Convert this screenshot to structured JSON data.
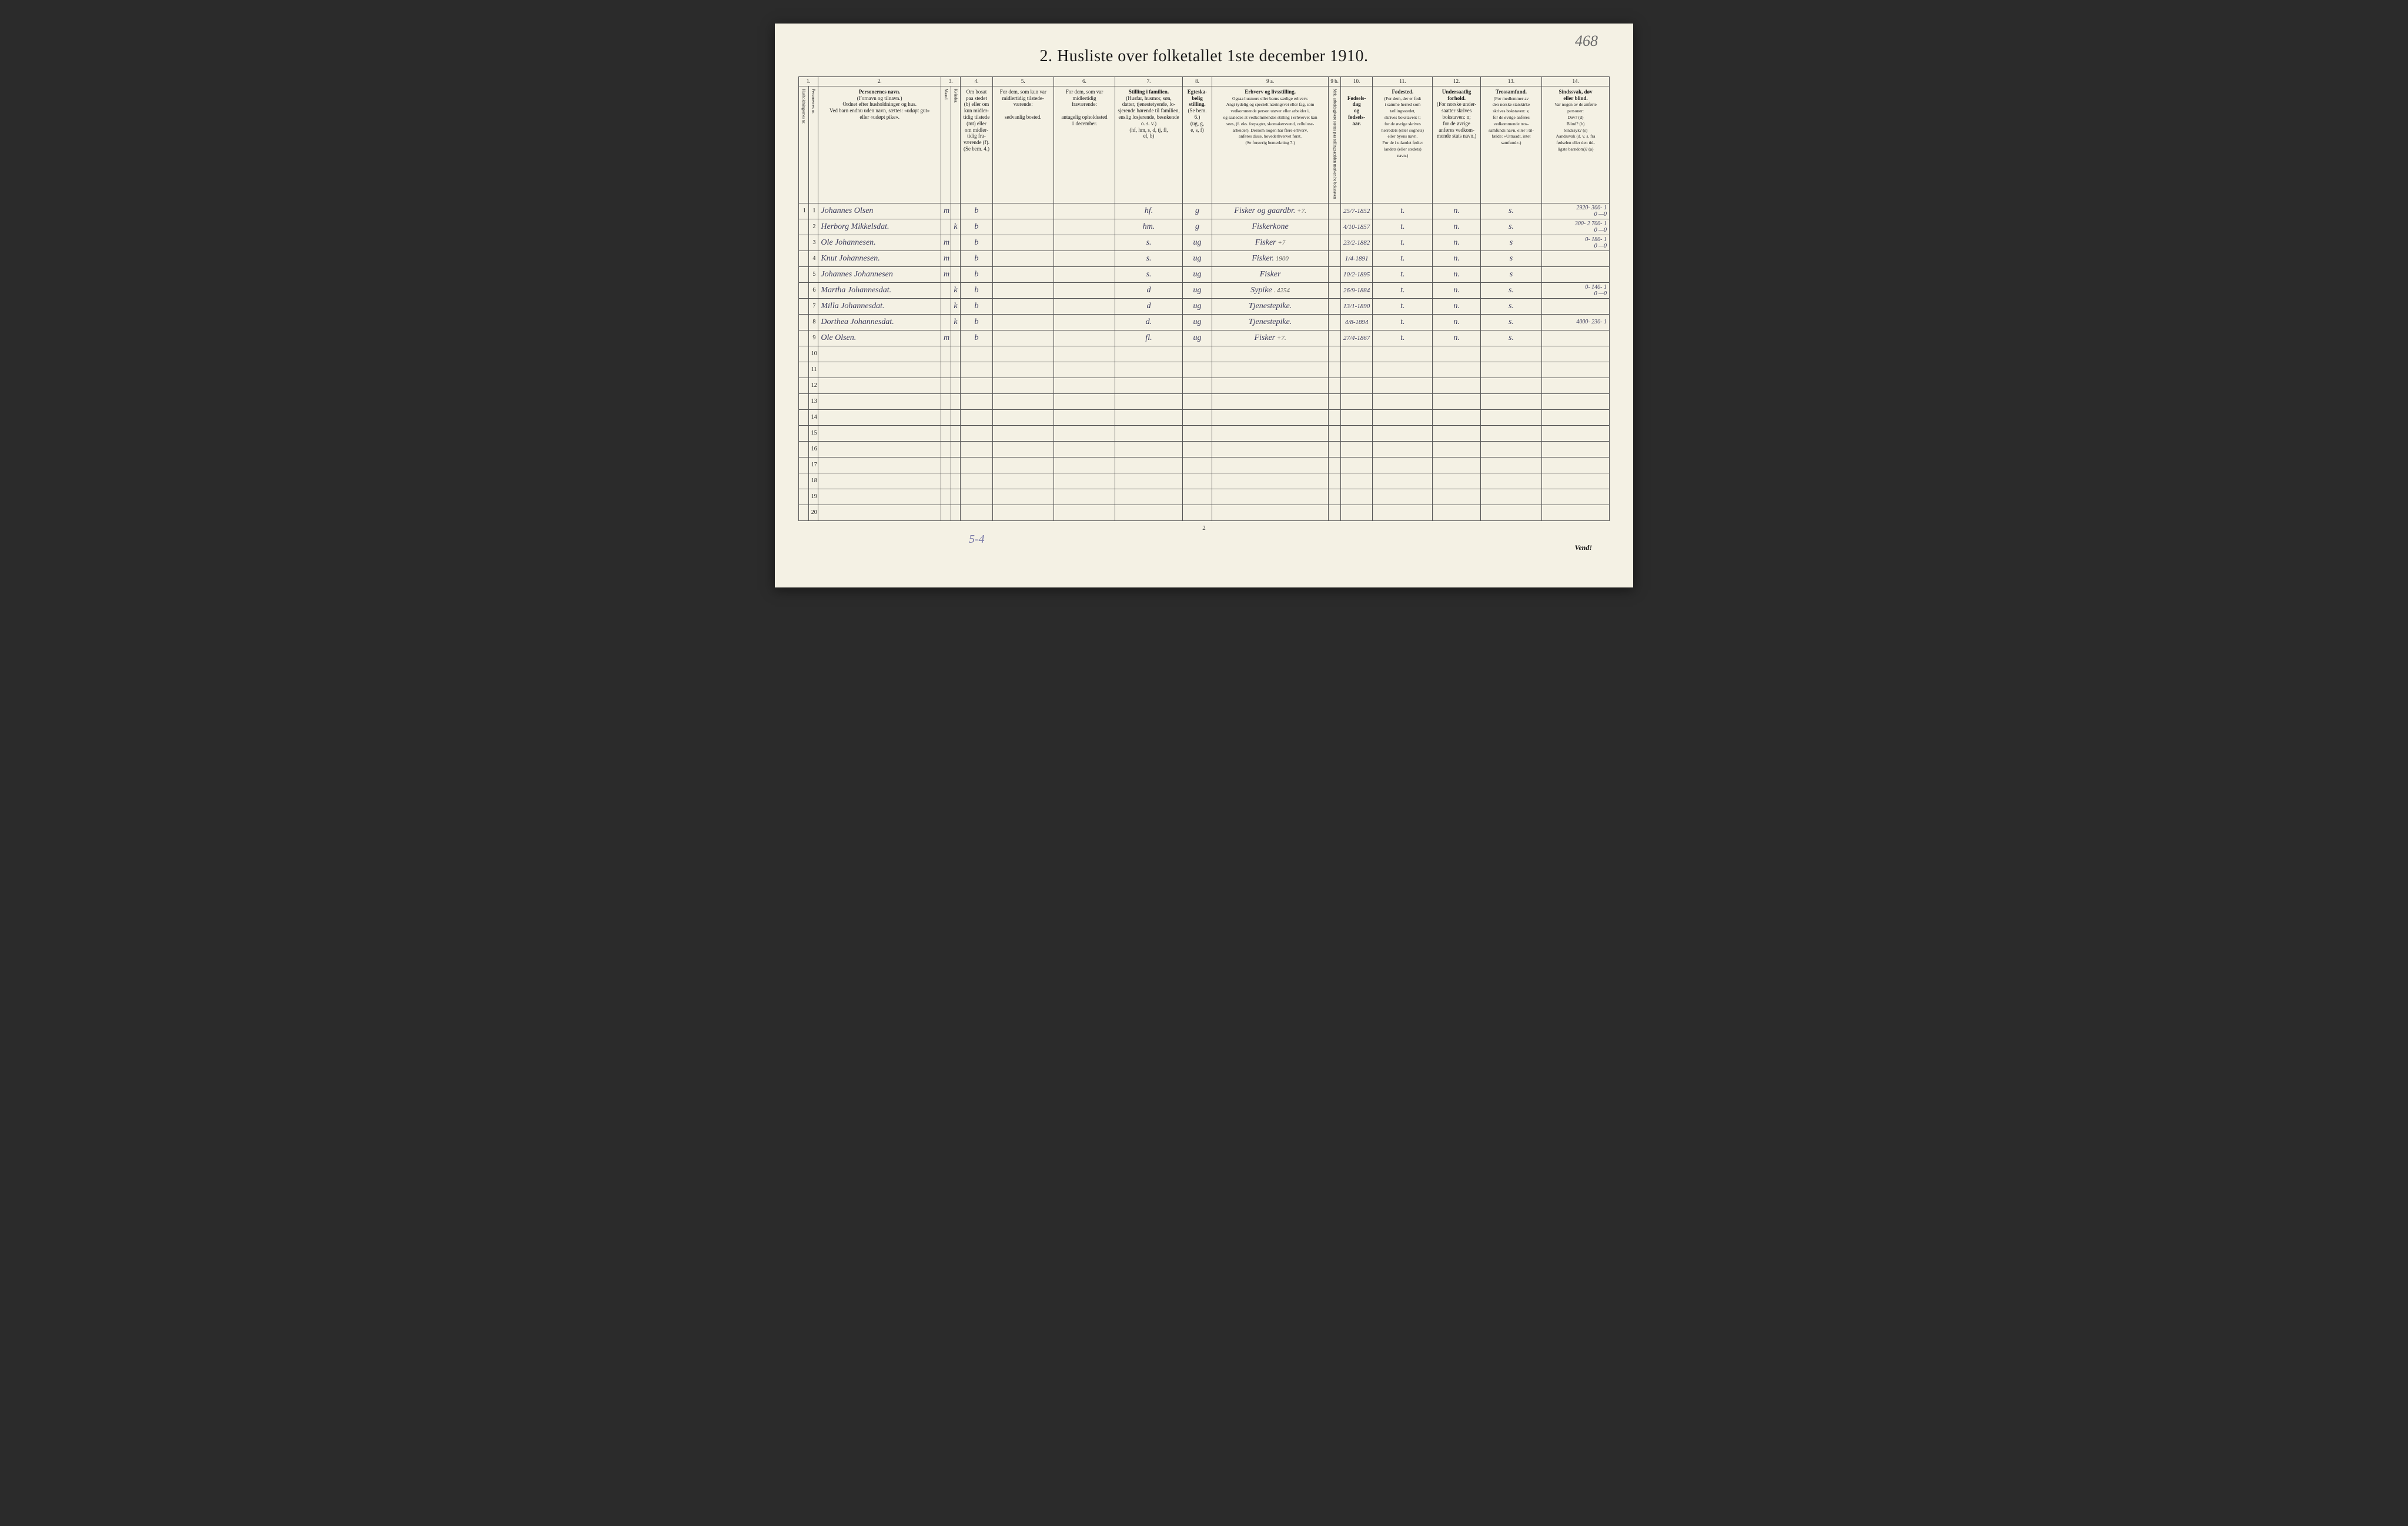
{
  "page": {
    "topRightAnnot": "468",
    "title": "2.  Husliste over folketallet 1ste december 1910.",
    "pageNumber": "2",
    "vend": "Vend!",
    "bottomAnnot": "5-4"
  },
  "columns": {
    "numbers": [
      "1.",
      "2.",
      "3.",
      "4.",
      "5.",
      "6.",
      "7.",
      "8.",
      "9 a.",
      "9 b.",
      "10.",
      "11.",
      "12.",
      "13.",
      "14."
    ],
    "c1a": "Husholdningernes nr.",
    "c1b": "Personernes nr.",
    "c2_title": "Personernes navn.",
    "c2_sub": "(Fornavn og tilnavn.)\nOrdnet efter husholdninger og hus.\nVed barn endnu uden navn, sættes: «udøpt gut»\neller «udøpt pike».",
    "c3_title": "Kjøn.",
    "c3_m": "Mænd.",
    "c3_k": "Kvinder.",
    "c3_foot": "m.  k.",
    "c4_title": "Om bosat\npaa stedet\n(b) eller om\nkun midler-\ntidig tilstede\n(mt) eller\nom midler-\ntidig fra-\nværende (f).\n(Se bem. 4.)",
    "c5_title": "For dem, som kun var\nmidlertidig tilstede-\nværende:",
    "c5_sub": "sedvanlig bosted.",
    "c6_title": "For dem, som var\nmidlertidig\nfraværende:",
    "c6_sub": "antagelig opholdssted\n1 december.",
    "c7_title": "Stilling i familien.",
    "c7_sub": "(Husfar, husmor, søn,\ndatter, tjenestetyende, lo-\nsjerende hørende til familien,\nenslig losjerende, besøkende\no. s. v.)\n(hf, hm, s, d, tj, fl,\nel, b)",
    "c8_title": "Egteska-\nbelig\nstilling.",
    "c8_sub": "(Se bem. 6.)\n(ug, g,\ne, s, f)",
    "c9a_title": "Erhverv og livsstilling.",
    "c9a_sub": "Ogsaa husmors eller barns særlige erhverv.\nAngi tydelig og specielt næringsvei eller fag, som\nvedkommende person utøver eller arbeider i,\nog saaledes at vedkommendes stilling i erhvervet kan\nsees, (f. eks. forpagter, skomakersvend, cellulose-\narbeider). Dersom nogen har flere erhverv,\nanføres disse, hovederhvervet først.\n(Se forøvrig bemerkning 7.)",
    "c9b_title": "Mrk. arbeidsgivere sættes\npaa tellingzacdden merken\nhe bokstaven ",
    "c10_title": "Fødsels-\ndag\nog\nfødsels-\naar.",
    "c11_title": "Fødested.",
    "c11_sub": "(For dem, der er født\ni samme herred som\ntællingsstedet,\nskrives bokstaven: t;\nfor de øvrige skrives\nherredets (eller sognets)\neller byens navn.\nFor de i utlandet fødte:\nlandets (eller stedets)\nnavn.)",
    "c12_title": "Undersaatlig\nforhold.",
    "c12_sub": "(For norske under-\nsaatter skrives\nbokstaven: n;\nfor de øvrige\nanføres vedkom-\nmende stats navn.)",
    "c13_title": "Trossamfund.",
    "c13_sub": "(For medlemmer av\nden norske statskirke\nskrives bokstaven: s;\nfor de øvrige anføres\nvedkommende tros-\nsamfunds navn, eller i til-\nfælde: «Uttraadt, intet\nsamfund».)",
    "c14_title": "Sindssvak, døv\neller blind.",
    "c14_sub": "Var nogen av de anførte\npersoner:\nDøv?        (d)\nBlind?       (b)\nSindssyk?  (s)\nAandssvak (d. v. s. fra\nfødselen eller den tid-\nligste barndom)?   (a)"
  },
  "rows": [
    {
      "hn": "1",
      "pn": "1",
      "name": "Johannes Olsen",
      "sex": "m",
      "res": "b",
      "fam": "hf.",
      "mar": "g",
      "occ": "Fisker og gaardbr.",
      "occnote": "+7.",
      "dob": "25/7-1852",
      "bp": "t.",
      "nat": "n.",
      "rel": "s.",
      "col14": "2920- 300- 1\n0 —0"
    },
    {
      "hn": "",
      "pn": "2",
      "name": "Herborg Mikkelsdat.",
      "sex": "k",
      "res": "b",
      "fam": "hm.",
      "mar": "g",
      "occ": "Fiskerkone",
      "occnote": "",
      "dob": "4/10-1857",
      "bp": "t.",
      "nat": "n.",
      "rel": "s.",
      "col14": "300- 2 700- 1\n0 —0"
    },
    {
      "hn": "",
      "pn": "3",
      "name": "Ole Johannesen.",
      "sex": "m",
      "res": "b",
      "fam": "s.",
      "mar": "ug",
      "occ": "Fisker",
      "occnote": "+7",
      "dob": "23/2-1882",
      "bp": "t.",
      "nat": "n.",
      "rel": "s",
      "col14": "0- 180- 1\n0 —0"
    },
    {
      "hn": "",
      "pn": "4",
      "name": "Knut Johannesen.",
      "sex": "m",
      "res": "b",
      "fam": "s.",
      "mar": "ug",
      "occ": "Fisker.",
      "occnote": "1900",
      "dob": "1/4-1891",
      "bp": "t.",
      "nat": "n.",
      "rel": "s",
      "col14": ""
    },
    {
      "hn": "",
      "pn": "5",
      "name": "Johannes Johannesen",
      "sex": "m",
      "res": "b",
      "fam": "s.",
      "mar": "ug",
      "occ": "Fisker",
      "occnote": "",
      "dob": "10/2-1895",
      "bp": "t.",
      "nat": "n.",
      "rel": "s",
      "col14": ""
    },
    {
      "hn": "",
      "pn": "6",
      "name": "Martha Johannesdat.",
      "sex": "k",
      "res": "b",
      "fam": "d",
      "mar": "ug",
      "occ": "Sypike",
      "occnote": ". 4254",
      "dob": "26/9-1884",
      "bp": "t.",
      "nat": "n.",
      "rel": "s.",
      "col14": "0- 140- 1\n0 —0"
    },
    {
      "hn": "",
      "pn": "7",
      "name": "Milla Johannesdat.",
      "sex": "k",
      "res": "b",
      "fam": "d",
      "mar": "ug",
      "occ": "Tjenestepike.",
      "occnote": "",
      "dob": "13/1-1890",
      "bp": "t.",
      "nat": "n.",
      "rel": "s.",
      "col14": ""
    },
    {
      "hn": "",
      "pn": "8",
      "name": "Dorthea Johannesdat.",
      "sex": "k",
      "res": "b",
      "fam": "d.",
      "mar": "ug",
      "occ": "Tjenestepike.",
      "occnote": "",
      "dob": "4/8-1894",
      "bp": "t.",
      "nat": "n.",
      "rel": "s.",
      "col14": "4000- 230- 1"
    },
    {
      "hn": "",
      "pn": "9",
      "name": "Ole Olsen.",
      "sex": "m",
      "res": "b",
      "fam": "fl.",
      "mar": "ug",
      "occ": "Fisker",
      "occnote": "+7.",
      "dob": "27/4-1867",
      "bp": "t.",
      "nat": "n.",
      "rel": "s.",
      "col14": ""
    },
    {
      "hn": "",
      "pn": "10",
      "name": "",
      "sex": "",
      "res": "",
      "fam": "",
      "mar": "",
      "occ": "",
      "occnote": "",
      "dob": "",
      "bp": "",
      "nat": "",
      "rel": "",
      "col14": ""
    },
    {
      "hn": "",
      "pn": "11",
      "name": "",
      "sex": "",
      "res": "",
      "fam": "",
      "mar": "",
      "occ": "",
      "occnote": "",
      "dob": "",
      "bp": "",
      "nat": "",
      "rel": "",
      "col14": ""
    },
    {
      "hn": "",
      "pn": "12",
      "name": "",
      "sex": "",
      "res": "",
      "fam": "",
      "mar": "",
      "occ": "",
      "occnote": "",
      "dob": "",
      "bp": "",
      "nat": "",
      "rel": "",
      "col14": ""
    },
    {
      "hn": "",
      "pn": "13",
      "name": "",
      "sex": "",
      "res": "",
      "fam": "",
      "mar": "",
      "occ": "",
      "occnote": "",
      "dob": "",
      "bp": "",
      "nat": "",
      "rel": "",
      "col14": ""
    },
    {
      "hn": "",
      "pn": "14",
      "name": "",
      "sex": "",
      "res": "",
      "fam": "",
      "mar": "",
      "occ": "",
      "occnote": "",
      "dob": "",
      "bp": "",
      "nat": "",
      "rel": "",
      "col14": ""
    },
    {
      "hn": "",
      "pn": "15",
      "name": "",
      "sex": "",
      "res": "",
      "fam": "",
      "mar": "",
      "occ": "",
      "occnote": "",
      "dob": "",
      "bp": "",
      "nat": "",
      "rel": "",
      "col14": ""
    },
    {
      "hn": "",
      "pn": "16",
      "name": "",
      "sex": "",
      "res": "",
      "fam": "",
      "mar": "",
      "occ": "",
      "occnote": "",
      "dob": "",
      "bp": "",
      "nat": "",
      "rel": "",
      "col14": ""
    },
    {
      "hn": "",
      "pn": "17",
      "name": "",
      "sex": "",
      "res": "",
      "fam": "",
      "mar": "",
      "occ": "",
      "occnote": "",
      "dob": "",
      "bp": "",
      "nat": "",
      "rel": "",
      "col14": ""
    },
    {
      "hn": "",
      "pn": "18",
      "name": "",
      "sex": "",
      "res": "",
      "fam": "",
      "mar": "",
      "occ": "",
      "occnote": "",
      "dob": "",
      "bp": "",
      "nat": "",
      "rel": "",
      "col14": ""
    },
    {
      "hn": "",
      "pn": "19",
      "name": "",
      "sex": "",
      "res": "",
      "fam": "",
      "mar": "",
      "occ": "",
      "occnote": "",
      "dob": "",
      "bp": "",
      "nat": "",
      "rel": "",
      "col14": ""
    },
    {
      "hn": "",
      "pn": "20",
      "name": "",
      "sex": "",
      "res": "",
      "fam": "",
      "mar": "",
      "occ": "",
      "occnote": "",
      "dob": "",
      "bp": "",
      "nat": "",
      "rel": "",
      "col14": ""
    }
  ],
  "style": {
    "pageBg": "#f4f1e4",
    "ink": "#1a1a1a",
    "handwriting": "#3a3a5a",
    "pencil": "#6b6b6b",
    "ruleLine": "#555555",
    "colWidths": {
      "c1a": 16,
      "c1b": 16,
      "c2": 200,
      "c3m": 16,
      "c3k": 16,
      "c4": 52,
      "c5": 100,
      "c6": 100,
      "c7": 110,
      "c8": 48,
      "c9a": 190,
      "c9b": 20,
      "c10": 52,
      "c11": 98,
      "c12": 78,
      "c13": 100,
      "c14": 110
    }
  }
}
